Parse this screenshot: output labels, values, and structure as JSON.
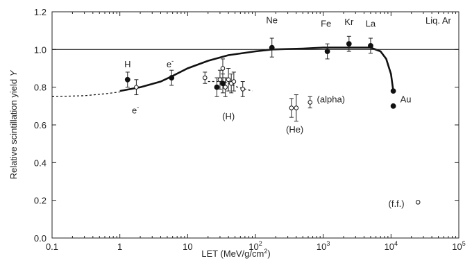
{
  "chart_data": {
    "type": "scatter",
    "title": "",
    "inset_label": "Liq. Ar",
    "xlabel_prefix": "LET (MeV/g/cm",
    "xlabel_sup": "2",
    "xlabel_suffix": ")",
    "ylabel": "Relative scintillation yield ",
    "ylabel_var": "Y",
    "x_scale": "log",
    "xlim": [
      0.1,
      100000
    ],
    "ylim": [
      0,
      1.2
    ],
    "x_ticks": [
      {
        "value": 0.1,
        "base": "0.1",
        "exp": ""
      },
      {
        "value": 1,
        "base": "1",
        "exp": ""
      },
      {
        "value": 10,
        "base": "10",
        "exp": ""
      },
      {
        "value": 100,
        "base": "10",
        "exp": "2"
      },
      {
        "value": 1000,
        "base": "10",
        "exp": "3"
      },
      {
        "value": 10000,
        "base": "10",
        "exp": "4"
      },
      {
        "value": 100000,
        "base": "10",
        "exp": "5"
      }
    ],
    "y_ticks": [
      "0.0",
      "0.2",
      "0.4",
      "0.6",
      "0.8",
      "1.0",
      "1.2"
    ],
    "reference_line": 1.0,
    "grid": false,
    "series": [
      {
        "marker": "filled",
        "points": [
          {
            "x": 1.3,
            "y": 0.84,
            "err": 0.04
          },
          {
            "x": 5.8,
            "y": 0.85,
            "err": 0.04
          },
          {
            "x": 175,
            "y": 1.01,
            "err": 0.05
          },
          {
            "x": 1150,
            "y": 0.99,
            "err": 0.04
          },
          {
            "x": 2400,
            "y": 1.03,
            "err": 0.04
          },
          {
            "x": 5000,
            "y": 1.02,
            "err": 0.04
          },
          {
            "x": 10800,
            "y": 0.78,
            "err": 0
          },
          {
            "x": 10800,
            "y": 0.7,
            "err": 0
          },
          {
            "x": 27,
            "y": 0.8,
            "err": 0.05
          },
          {
            "x": 33,
            "y": 0.82,
            "err": 0.05
          }
        ]
      },
      {
        "marker": "open",
        "points": [
          {
            "x": 1.75,
            "y": 0.8,
            "err": 0.04
          },
          {
            "x": 18,
            "y": 0.85,
            "err": 0.03
          },
          {
            "x": 30,
            "y": 0.84,
            "err": 0.05
          },
          {
            "x": 33,
            "y": 0.9,
            "err": 0.05
          },
          {
            "x": 36,
            "y": 0.8,
            "err": 0.05
          },
          {
            "x": 40,
            "y": 0.84,
            "err": 0.06
          },
          {
            "x": 44,
            "y": 0.82,
            "err": 0.05
          },
          {
            "x": 48,
            "y": 0.83,
            "err": 0.05
          },
          {
            "x": 65,
            "y": 0.79,
            "err": 0.04
          },
          {
            "x": 340,
            "y": 0.69,
            "err": 0.05
          },
          {
            "x": 400,
            "y": 0.69,
            "err": 0.07
          },
          {
            "x": 640,
            "y": 0.72,
            "err": 0.03
          },
          {
            "x": 25000,
            "y": 0.19,
            "err": 0
          }
        ]
      }
    ],
    "curves": [
      {
        "style": "dashed",
        "points": [
          [
            0.1,
            0.75
          ],
          [
            0.3,
            0.755
          ],
          [
            0.6,
            0.765
          ],
          [
            1.0,
            0.775
          ]
        ]
      },
      {
        "style": "solid",
        "points": [
          [
            1.0,
            0.78
          ],
          [
            2.0,
            0.8
          ],
          [
            4.0,
            0.83
          ],
          [
            6.0,
            0.86
          ],
          [
            10,
            0.9
          ],
          [
            20,
            0.94
          ],
          [
            40,
            0.97
          ],
          [
            100,
            0.99
          ],
          [
            175,
            1.0
          ],
          [
            500,
            1.005
          ],
          [
            1000,
            1.01
          ],
          [
            3000,
            1.01
          ],
          [
            5000,
            1.01
          ],
          [
            7000,
            0.99
          ],
          [
            8500,
            0.95
          ],
          [
            10000,
            0.87
          ],
          [
            10800,
            0.78
          ]
        ]
      },
      {
        "style": "dashed",
        "points": [
          [
            20,
            0.83
          ],
          [
            35,
            0.83
          ],
          [
            55,
            0.8
          ],
          [
            90,
            0.78
          ]
        ]
      }
    ],
    "annotations": [
      {
        "text": "H",
        "x": 1.3,
        "y": 0.905
      },
      {
        "text": "e",
        "sup": "-",
        "x": 5.5,
        "y": 0.905
      },
      {
        "text": "e",
        "sup": "-",
        "x": 1.7,
        "y": 0.66
      },
      {
        "text": "(H)",
        "x": 40,
        "y": 0.63
      },
      {
        "text": "Ne",
        "x": 175,
        "y": 1.14
      },
      {
        "text": "Fe",
        "x": 1100,
        "y": 1.12
      },
      {
        "text": "Kr",
        "x": 2400,
        "y": 1.13
      },
      {
        "text": "La",
        "x": 5000,
        "y": 1.12
      },
      {
        "text": "Au",
        "x": 16500,
        "y": 0.72
      },
      {
        "text": "(alpha)",
        "x": 1300,
        "y": 0.72
      },
      {
        "text": "(He)",
        "x": 380,
        "y": 0.56
      },
      {
        "text": "(f.f.)",
        "x": 12000,
        "y": 0.165
      }
    ]
  }
}
